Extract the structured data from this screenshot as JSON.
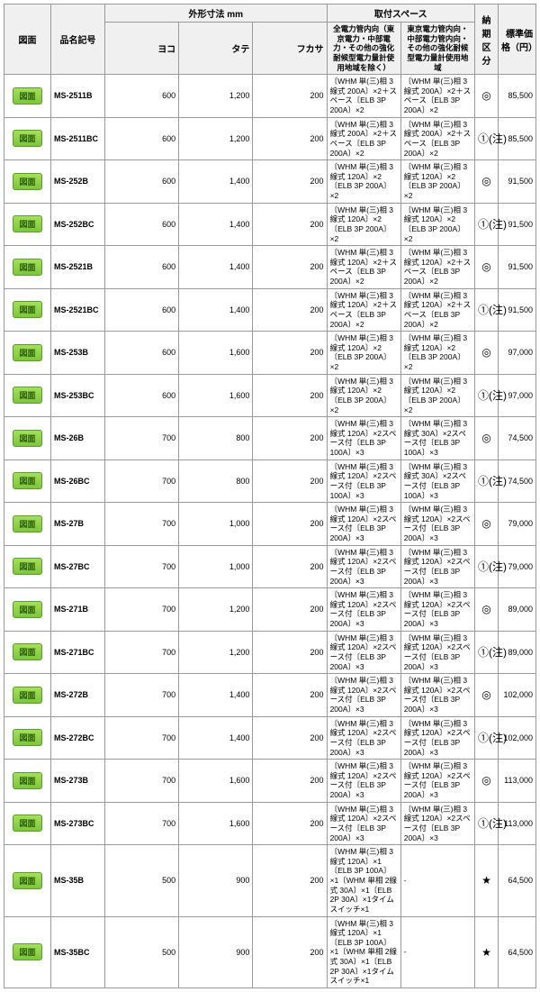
{
  "headers": {
    "zumen": "図面",
    "code": "品名記号",
    "dims_group": "外形寸法 mm",
    "yoko": "ヨコ",
    "tate": "タテ",
    "fukasa": "フカサ",
    "space_group": "取付スペース",
    "spec1": "全電力管内向（東京電力・中部電力・その他の強化耐候型電力量計使用地域を除く）",
    "spec2": "東京電力管内向・中部電力管内向・その他の強化耐候型電力量計使用地域",
    "nouki": "納期区分",
    "price": "標準価格（円）"
  },
  "btn_label": "図面",
  "rows": [
    {
      "code": "MS-2511B",
      "y": "600",
      "t": "1,200",
      "f": "200",
      "s1": "〔WHM 単(三)相 3線式 200A〕×2＋スペース〔ELB 3P 200A〕×2",
      "s2": "〔WHM 単(三)相 3線式 200A〕×2＋スペース〔ELB 3P 200A〕×2",
      "n": "◎",
      "p": "85,500"
    },
    {
      "code": "MS-2511BC",
      "y": "600",
      "t": "1,200",
      "f": "200",
      "s1": "〔WHM 単(三)相 3線式 200A〕×2＋スペース〔ELB 3P 200A〕×2",
      "s2": "〔WHM 単(三)相 3線式 200A〕×2＋スペース〔ELB 3P 200A〕×2",
      "n": "①(注)",
      "p": "85,500"
    },
    {
      "code": "MS-252B",
      "y": "600",
      "t": "1,400",
      "f": "200",
      "s1": "〔WHM 単(三)相 3線式 120A〕×2〔ELB 3P 200A〕×2",
      "s2": "〔WHM 単(三)相 3線式 120A〕×2〔ELB 3P 200A〕×2",
      "n": "◎",
      "p": "91,500"
    },
    {
      "code": "MS-252BC",
      "y": "600",
      "t": "1,400",
      "f": "200",
      "s1": "〔WHM 単(三)相 3線式 120A〕×2〔ELB 3P 200A〕×2",
      "s2": "〔WHM 単(三)相 3線式 120A〕×2〔ELB 3P 200A〕×2",
      "n": "①(注)",
      "p": "91,500"
    },
    {
      "code": "MS-2521B",
      "y": "600",
      "t": "1,400",
      "f": "200",
      "s1": "〔WHM 単(三)相 3線式 120A〕×2＋スペース〔ELB 3P 200A〕×2",
      "s2": "〔WHM 単(三)相 3線式 120A〕×2＋スペース〔ELB 3P 200A〕×2",
      "n": "◎",
      "p": "91,500"
    },
    {
      "code": "MS-2521BC",
      "y": "600",
      "t": "1,400",
      "f": "200",
      "s1": "〔WHM 単(三)相 3線式 120A〕×2＋スペース〔ELB 3P 200A〕×2",
      "s2": "〔WHM 単(三)相 3線式 120A〕×2＋スペース〔ELB 3P 200A〕×2",
      "n": "①(注)",
      "p": "91,500"
    },
    {
      "code": "MS-253B",
      "y": "600",
      "t": "1,600",
      "f": "200",
      "s1": "〔WHM 単(三)相 3線式 120A〕×2〔ELB 3P 200A〕×2",
      "s2": "〔WHM 単(三)相 3線式 120A〕×2〔ELB 3P 200A〕×2",
      "n": "◎",
      "p": "97,000"
    },
    {
      "code": "MS-253BC",
      "y": "600",
      "t": "1,600",
      "f": "200",
      "s1": "〔WHM 単(三)相 3線式 120A〕×2〔ELB 3P 200A〕×2",
      "s2": "〔WHM 単(三)相 3線式 120A〕×2〔ELB 3P 200A〕×2",
      "n": "①(注)",
      "p": "97,000"
    },
    {
      "code": "MS-26B",
      "y": "700",
      "t": "800",
      "f": "200",
      "s1": "〔WHM 単(三)相 3線式 120A〕×2スペース付〔ELB 3P 100A〕×3",
      "s2": "〔WHM 単(三)相 3線式 30A〕×2スペース付〔ELB 3P 100A〕×3",
      "n": "◎",
      "p": "74,500"
    },
    {
      "code": "MS-26BC",
      "y": "700",
      "t": "800",
      "f": "200",
      "s1": "〔WHM 単(三)相 3線式 120A〕×2スペース付〔ELB 3P 100A〕×3",
      "s2": "〔WHM 単(三)相 3線式 30A〕×2スペース付〔ELB 3P 100A〕×3",
      "n": "①(注)",
      "p": "74,500"
    },
    {
      "code": "MS-27B",
      "y": "700",
      "t": "1,000",
      "f": "200",
      "s1": "〔WHM 単(三)相 3線式 120A〕×2スペース付〔ELB 3P 200A〕×3",
      "s2": "〔WHM 単(三)相 3線式 120A〕×2スペース付〔ELB 3P 200A〕×3",
      "n": "◎",
      "p": "79,000"
    },
    {
      "code": "MS-27BC",
      "y": "700",
      "t": "1,000",
      "f": "200",
      "s1": "〔WHM 単(三)相 3線式 120A〕×2スペース付〔ELB 3P 200A〕×3",
      "s2": "〔WHM 単(三)相 3線式 120A〕×2スペース付〔ELB 3P 200A〕×3",
      "n": "①(注)",
      "p": "79,000"
    },
    {
      "code": "MS-271B",
      "y": "700",
      "t": "1,200",
      "f": "200",
      "s1": "〔WHM 単(三)相 3線式 120A〕×2スペース付〔ELB 3P 200A〕×3",
      "s2": "〔WHM 単(三)相 3線式 120A〕×2スペース付〔ELB 3P 200A〕×3",
      "n": "◎",
      "p": "89,000"
    },
    {
      "code": "MS-271BC",
      "y": "700",
      "t": "1,200",
      "f": "200",
      "s1": "〔WHM 単(三)相 3線式 120A〕×2スペース付〔ELB 3P 200A〕×3",
      "s2": "〔WHM 単(三)相 3線式 120A〕×2スペース付〔ELB 3P 200A〕×3",
      "n": "①(注)",
      "p": "89,000"
    },
    {
      "code": "MS-272B",
      "y": "700",
      "t": "1,400",
      "f": "200",
      "s1": "〔WHM 単(三)相 3線式 120A〕×2スペース付〔ELB 3P 200A〕×3",
      "s2": "〔WHM 単(三)相 3線式 120A〕×2スペース付〔ELB 3P 200A〕×3",
      "n": "◎",
      "p": "102,000"
    },
    {
      "code": "MS-272BC",
      "y": "700",
      "t": "1,400",
      "f": "200",
      "s1": "〔WHM 単(三)相 3線式 120A〕×2スペース付〔ELB 3P 200A〕×3",
      "s2": "〔WHM 単(三)相 3線式 120A〕×2スペース付〔ELB 3P 200A〕×3",
      "n": "①(注)",
      "p": "102,000"
    },
    {
      "code": "MS-273B",
      "y": "700",
      "t": "1,600",
      "f": "200",
      "s1": "〔WHM 単(三)相 3線式 120A〕×2スペース付〔ELB 3P 200A〕×3",
      "s2": "〔WHM 単(三)相 3線式 120A〕×2スペース付〔ELB 3P 200A〕×3",
      "n": "◎",
      "p": "113,000"
    },
    {
      "code": "MS-273BC",
      "y": "700",
      "t": "1,600",
      "f": "200",
      "s1": "〔WHM 単(三)相 3線式 120A〕×2スペース付〔ELB 3P 200A〕×3",
      "s2": "〔WHM 単(三)相 3線式 120A〕×2スペース付〔ELB 3P 200A〕×3",
      "n": "①(注)",
      "p": "113,000"
    },
    {
      "code": "MS-35B",
      "y": "500",
      "t": "900",
      "f": "200",
      "s1": "〔WHM 単(三)相 3線式 120A〕×1〔ELB 3P 100A〕×1〔WHM 単相 2線式 30A〕×1〔ELB 2P 30A〕×1タイムスイッチ×1",
      "s2": "-",
      "n": "★",
      "p": "64,500"
    },
    {
      "code": "MS-35BC",
      "y": "500",
      "t": "900",
      "f": "200",
      "s1": "〔WHM 単(三)相 3線式 120A〕×1〔ELB 3P 100A〕×1〔WHM 単相 2線式 30A〕×1〔ELB 2P 30A〕×1タイムスイッチ×1",
      "s2": "-",
      "n": "★",
      "p": "64,500"
    }
  ]
}
